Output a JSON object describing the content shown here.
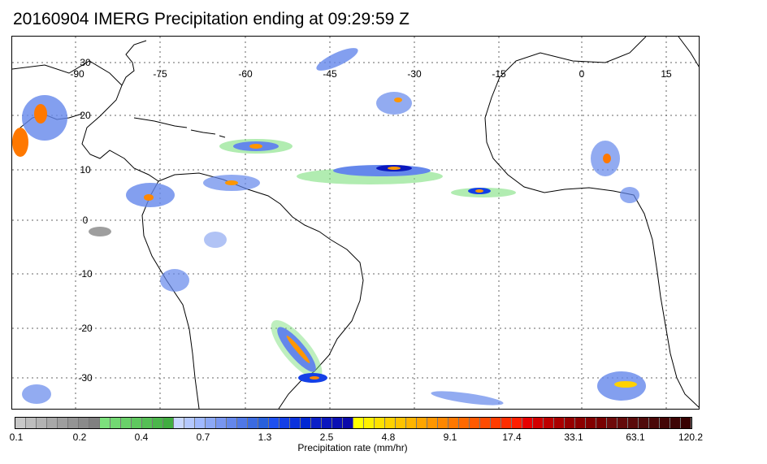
{
  "title": "20160904 IMERG Precipitation ending at 09:29:59 Z",
  "map": {
    "longitude_labels": [
      "-90",
      "-75",
      "-60",
      "-45",
      "-30",
      "-15",
      "0",
      "15"
    ],
    "latitude_labels": [
      "30",
      "20",
      "10",
      "0",
      "-10",
      "-20",
      "-30"
    ]
  },
  "colorbar": {
    "title": "Precipitation rate (mm/hr)",
    "tick_labels": [
      "0.1",
      "0.2",
      "0.4",
      "0.7",
      "1.3",
      "2.5",
      "4.8",
      "9.1",
      "17.4",
      "33.1",
      "63.1",
      "120.2"
    ],
    "colors": [
      "#c8c8c8",
      "#bdbdbd",
      "#b3b3b3",
      "#a8a8a8",
      "#9e9e9e",
      "#949494",
      "#8a8a8a",
      "#808080",
      "#7de07d",
      "#73d873",
      "#69d069",
      "#5fc85f",
      "#55bf55",
      "#4bb64b",
      "#41ad41",
      "#c8d7ff",
      "#b4c8ff",
      "#a0b9ff",
      "#8ca8f5",
      "#7896f0",
      "#6487eb",
      "#5078e6",
      "#3c6be0",
      "#2860dc",
      "#1e50f0",
      "#1440e6",
      "#0a32dc",
      "#0028d2",
      "#0a20c8",
      "#0a18be",
      "#0a10b4",
      "#0a0aaa",
      "#ffff00",
      "#fff000",
      "#ffe100",
      "#ffd200",
      "#ffc300",
      "#ffb400",
      "#ffa500",
      "#ff9600",
      "#ff8700",
      "#ff7800",
      "#ff6900",
      "#ff5a00",
      "#ff4b00",
      "#ff3c00",
      "#ff2d00",
      "#ff1e00",
      "#e60000",
      "#d20000",
      "#be0000",
      "#aa0000",
      "#960000",
      "#8c0000",
      "#820000",
      "#780000",
      "#6e0a0a",
      "#640a0a",
      "#5a0a0a",
      "#500a0a",
      "#4a0808",
      "#440606",
      "#3e0404",
      "#380202"
    ]
  }
}
